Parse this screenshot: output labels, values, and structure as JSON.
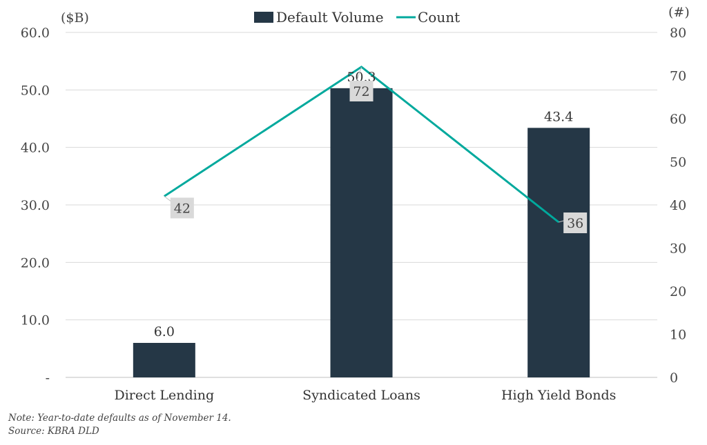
{
  "chart_data": {
    "type": "bar",
    "categories": [
      "Direct Lending",
      "Syndicated Loans",
      "High Yield Bonds"
    ],
    "series": [
      {
        "name": "Default Volume",
        "type": "bar",
        "axis": "left",
        "values": [
          6.0,
          50.3,
          43.4
        ],
        "labels": [
          "6.0",
          "50.3",
          "43.4"
        ],
        "color": "#253746"
      },
      {
        "name": "Count",
        "type": "line",
        "axis": "right",
        "values": [
          42,
          72,
          36
        ],
        "labels": [
          "42",
          "72",
          "36"
        ],
        "color": "#00A99D"
      }
    ],
    "left_axis": {
      "unit": "($B)",
      "ylim": [
        0,
        60
      ],
      "ticks": [
        "-",
        "10.0",
        "20.0",
        "30.0",
        "40.0",
        "50.0",
        "60.0"
      ]
    },
    "right_axis": {
      "unit": "(#)",
      "ylim": [
        0,
        80
      ],
      "ticks": [
        "0",
        "10",
        "20",
        "30",
        "40",
        "50",
        "60",
        "70",
        "80"
      ]
    },
    "legend_position": "top",
    "grid": true
  },
  "notes": {
    "note": "Note: Year-to-date defaults as of November 14.",
    "source": "Source: KBRA DLD"
  }
}
